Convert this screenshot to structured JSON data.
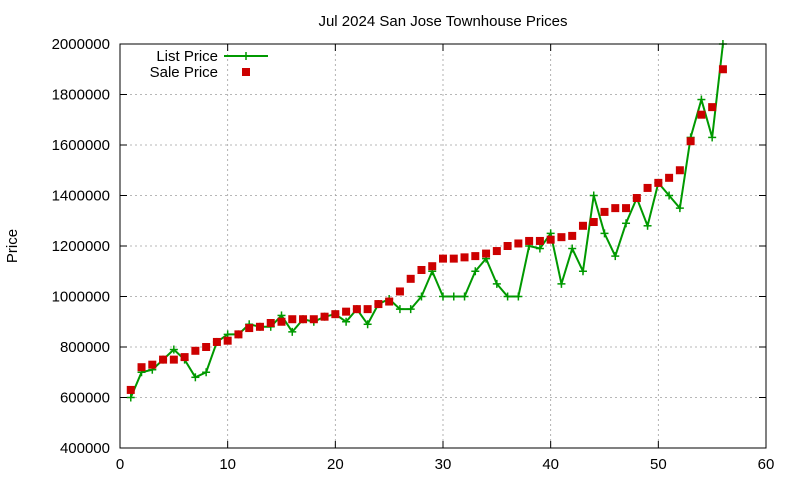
{
  "chart_data": {
    "type": "line",
    "title": "Jul 2024 San Jose Townhouse Prices",
    "xlabel": "",
    "ylabel": "Price",
    "xlim": [
      0,
      60
    ],
    "ylim": [
      400000,
      2000000
    ],
    "x_ticks": [
      0,
      10,
      20,
      30,
      40,
      50,
      60
    ],
    "y_ticks": [
      400000,
      600000,
      800000,
      1000000,
      1200000,
      1400000,
      1600000,
      1800000,
      2000000
    ],
    "x_tick_labels": [
      "0",
      "10",
      "20",
      "30",
      "40",
      "50",
      "60"
    ],
    "y_tick_labels": [
      "400000",
      "600000",
      "800000",
      "1000000",
      "1200000",
      "1400000",
      "1600000",
      "1800000",
      "2000000"
    ],
    "grid": true,
    "legend_position": "top-left",
    "series": [
      {
        "name": "List Price",
        "style": "line-with-plus-markers",
        "color": "#009900",
        "x": [
          1,
          2,
          3,
          4,
          5,
          6,
          7,
          8,
          9,
          10,
          11,
          12,
          13,
          14,
          15,
          16,
          17,
          18,
          19,
          20,
          21,
          22,
          23,
          24,
          25,
          26,
          27,
          28,
          29,
          30,
          31,
          32,
          33,
          34,
          35,
          36,
          37,
          38,
          39,
          40,
          41,
          42,
          43,
          44,
          45,
          46,
          47,
          48,
          49,
          50,
          51,
          52,
          53,
          54,
          55,
          56
        ],
        "values": [
          600000,
          700000,
          710000,
          750000,
          790000,
          750000,
          680000,
          700000,
          820000,
          850000,
          850000,
          890000,
          880000,
          880000,
          925000,
          860000,
          910000,
          900000,
          920000,
          930000,
          900000,
          950000,
          890000,
          970000,
          990000,
          950000,
          950000,
          1000000,
          1100000,
          1000000,
          1000000,
          1000000,
          1100000,
          1150000,
          1050000,
          1000000,
          1000000,
          1200000,
          1190000,
          1250000,
          1050000,
          1190000,
          1100000,
          1400000,
          1250000,
          1160000,
          1290000,
          1390000,
          1280000,
          1450000,
          1400000,
          1350000,
          1630000,
          1780000,
          1630000,
          2000000
        ]
      },
      {
        "name": "Sale Price",
        "style": "square-markers",
        "color": "#cc0000",
        "x": [
          1,
          2,
          3,
          4,
          5,
          6,
          7,
          8,
          9,
          10,
          11,
          12,
          13,
          14,
          15,
          16,
          17,
          18,
          19,
          20,
          21,
          22,
          23,
          24,
          25,
          26,
          27,
          28,
          29,
          30,
          31,
          32,
          33,
          34,
          35,
          36,
          37,
          38,
          39,
          40,
          41,
          42,
          43,
          44,
          45,
          46,
          47,
          48,
          49,
          50,
          51,
          52,
          53,
          54,
          55,
          56
        ],
        "values": [
          630000,
          720000,
          730000,
          750000,
          750000,
          760000,
          785000,
          800000,
          820000,
          825000,
          850000,
          875000,
          880000,
          895000,
          900000,
          910000,
          910000,
          910000,
          920000,
          930000,
          940000,
          950000,
          950000,
          970000,
          980000,
          1020000,
          1070000,
          1105000,
          1120000,
          1150000,
          1150000,
          1155000,
          1160000,
          1170000,
          1180000,
          1200000,
          1210000,
          1220000,
          1220000,
          1225000,
          1235000,
          1240000,
          1280000,
          1295000,
          1335000,
          1350000,
          1350000,
          1390000,
          1430000,
          1450000,
          1470000,
          1500000,
          1615000,
          1720000,
          1750000,
          1900000
        ]
      }
    ]
  }
}
